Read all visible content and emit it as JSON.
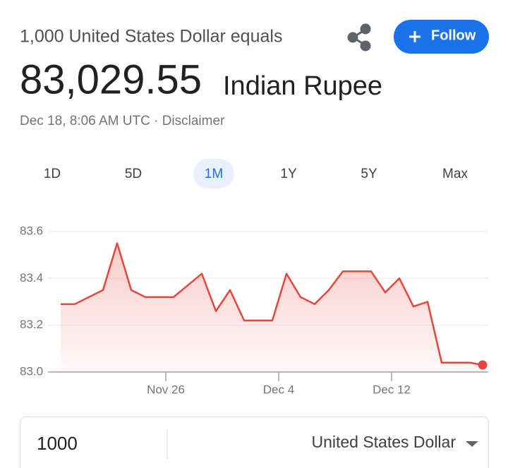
{
  "header": {
    "subtitle": "1,000 United States Dollar equals",
    "amount": "83,029.55",
    "currency": "Indian Rupee",
    "timestamp": "Dec 18, 8:06 AM UTC",
    "separator": "·",
    "disclaimer": "Disclaimer",
    "follow": "Follow"
  },
  "tabs": {
    "items": [
      "1D",
      "5D",
      "1M",
      "1Y",
      "5Y",
      "Max"
    ],
    "selected": 2
  },
  "chart_data": {
    "type": "line",
    "x": [
      0,
      1,
      2,
      3,
      4,
      5,
      6,
      7,
      8,
      9,
      10,
      11,
      12,
      13,
      14,
      15,
      16,
      17,
      18,
      19,
      20,
      21,
      22,
      23,
      24,
      25,
      26,
      27,
      28,
      29,
      29.9
    ],
    "series": [
      {
        "name": "USD to INR",
        "color": "#e8453c",
        "values": [
          83.29,
          83.29,
          83.32,
          83.35,
          83.55,
          83.35,
          83.32,
          83.32,
          83.32,
          83.37,
          83.42,
          83.26,
          83.35,
          83.22,
          83.22,
          83.22,
          83.42,
          83.32,
          83.29,
          83.35,
          83.43,
          83.43,
          83.43,
          83.34,
          83.4,
          83.28,
          83.3,
          83.04,
          83.04,
          83.04,
          83.03
        ]
      }
    ],
    "xlim": [
      0,
      29.9
    ],
    "xticks": [
      {
        "value": 7.45,
        "label": "Nov 26"
      },
      {
        "value": 15.45,
        "label": "Dec 4"
      },
      {
        "value": 23.45,
        "label": "Dec 12"
      }
    ],
    "ylim": [
      83.0,
      83.6
    ],
    "yticks": [
      {
        "value": 83.0,
        "label": "83.0"
      },
      83.2,
      83.4,
      83.6
    ],
    "grid": true
  },
  "converter": {
    "amount": "1000",
    "currency": "United States Dollar"
  }
}
